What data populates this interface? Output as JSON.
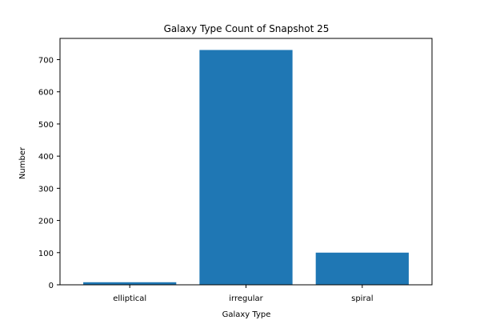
{
  "chart_data": {
    "type": "bar",
    "title": "Galaxy Type Count of Snapshot 25",
    "xlabel": "Galaxy Type",
    "ylabel": "Number",
    "categories": [
      "elliptical",
      "irregular",
      "spiral"
    ],
    "values": [
      8,
      730,
      100
    ],
    "ylim": [
      0,
      766
    ],
    "yticks": [
      0,
      100,
      200,
      300,
      400,
      500,
      600,
      700
    ],
    "bar_color": "#1f77b4",
    "grid": false
  }
}
